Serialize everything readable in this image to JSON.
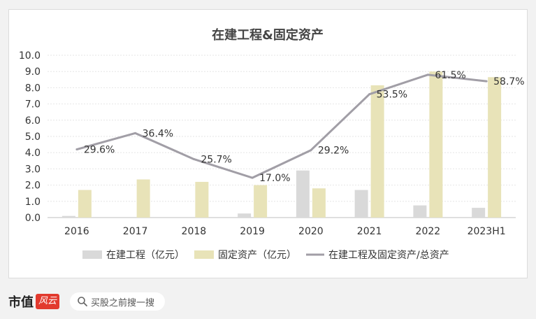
{
  "chart_data": {
    "type": "bar",
    "title": "在建工程&固定资产",
    "categories": [
      "2016",
      "2017",
      "2018",
      "2019",
      "2020",
      "2021",
      "2022",
      "2023H1"
    ],
    "ylim": [
      0,
      10
    ],
    "yticks": [
      "0.0",
      "1.0",
      "2.0",
      "3.0",
      "4.0",
      "5.0",
      "6.0",
      "7.0",
      "8.0",
      "9.0",
      "10.0"
    ],
    "series": [
      {
        "name": "在建工程（亿元）",
        "type": "bar",
        "color": "#d9d9d9",
        "values": [
          0.1,
          0.0,
          0.0,
          0.25,
          2.9,
          1.7,
          0.75,
          0.6
        ]
      },
      {
        "name": "固定资产（亿元）",
        "type": "bar",
        "color": "#e8e3b8",
        "values": [
          1.7,
          2.35,
          2.2,
          2.0,
          1.8,
          8.15,
          9.0,
          8.65
        ]
      },
      {
        "name": "在建工程及固定资产/总资产",
        "type": "line",
        "color": "#a19ea6",
        "values": [
          4.2,
          5.2,
          3.6,
          2.45,
          4.15,
          7.6,
          8.8,
          8.4
        ],
        "labels": [
          "29.6%",
          "36.4%",
          "25.7%",
          "17.0%",
          "29.2%",
          "53.5%",
          "61.5%",
          "58.7%"
        ]
      }
    ],
    "grid": true,
    "legend": "bottom"
  },
  "footer": {
    "brand_name": "市值",
    "brand_badge": "风云",
    "search_placeholder": "买股之前搜一搜"
  }
}
